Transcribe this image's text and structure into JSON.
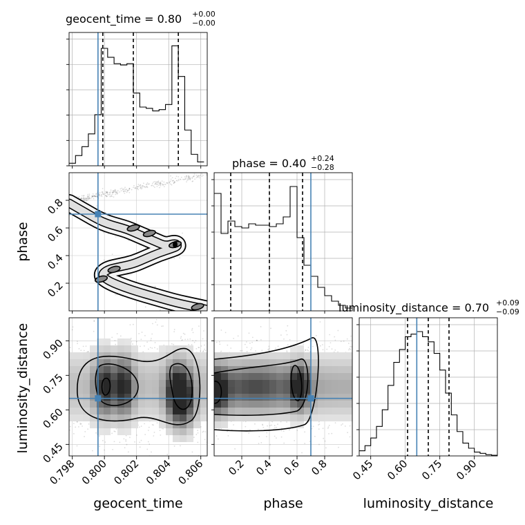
{
  "chart_data": {
    "type": "corner",
    "parameters": [
      "geocent_time",
      "phase",
      "luminosity_distance"
    ],
    "truth_color": "#4682b4",
    "grid": true,
    "titles": [
      {
        "param": "geocent_time",
        "base": "geocent_time = 0.80",
        "sup": "+0.00",
        "sub": "−0.00"
      },
      {
        "param": "phase",
        "base": "phase = 0.40",
        "sup": "+0.24",
        "sub": "−0.28"
      },
      {
        "param": "luminosity_distance",
        "base": "luminosity_distance = 0.70",
        "sup": "+0.09",
        "sub": "−0.09"
      }
    ],
    "axes": {
      "geocent_time": {
        "range": [
          0.7978,
          0.8064
        ],
        "ticks": [
          0.798,
          0.8,
          0.802,
          0.804,
          0.806
        ],
        "tick_labels": [
          "0.798",
          "0.800",
          "0.802",
          "0.804",
          "0.806"
        ],
        "truth": 0.7996
      },
      "phase": {
        "range": [
          0.0,
          1.0
        ],
        "ticks": [
          0.2,
          0.4,
          0.6,
          0.8
        ],
        "tick_labels": [
          "0.2",
          "0.4",
          "0.6",
          "0.8"
        ],
        "truth": 0.7
      },
      "luminosity_distance": {
        "range": [
          0.4,
          1.0
        ],
        "ticks": [
          0.45,
          0.6,
          0.75,
          0.9
        ],
        "tick_labels": [
          "0.45",
          "0.60",
          "0.75",
          "0.90"
        ],
        "truth": 0.65
      }
    },
    "histograms": {
      "geocent_time": {
        "bins": [
          0.7978,
          0.7982,
          0.7986,
          0.799,
          0.7994,
          0.7998,
          0.8002,
          0.8006,
          0.801,
          0.8014,
          0.8018,
          0.8022,
          0.8026,
          0.803,
          0.8034,
          0.8038,
          0.8042,
          0.8046,
          0.805,
          0.8054,
          0.8058,
          0.8062
        ],
        "counts": [
          0.02,
          0.08,
          0.15,
          0.25,
          0.4,
          0.92,
          0.85,
          0.8,
          0.79,
          0.8,
          0.57,
          0.46,
          0.45,
          0.43,
          0.44,
          0.48,
          0.94,
          0.7,
          0.28,
          0.09,
          0.03
        ],
        "quantiles": [
          0.7999,
          0.8018,
          0.8046
        ]
      },
      "phase": {
        "bins": [
          0.0,
          0.05,
          0.1,
          0.15,
          0.2,
          0.25,
          0.3,
          0.35,
          0.4,
          0.45,
          0.5,
          0.55,
          0.6,
          0.65,
          0.7,
          0.75,
          0.8,
          0.85,
          0.9,
          0.95,
          1.0
        ],
        "counts": [
          0.85,
          0.56,
          0.65,
          0.61,
          0.6,
          0.63,
          0.62,
          0.62,
          0.61,
          0.63,
          0.68,
          0.9,
          0.53,
          0.33,
          0.25,
          0.17,
          0.11,
          0.07,
          0.04,
          0.02
        ],
        "quantiles": [
          0.12,
          0.4,
          0.64
        ]
      },
      "luminosity_distance": {
        "bins": [
          0.4,
          0.425,
          0.45,
          0.475,
          0.5,
          0.525,
          0.55,
          0.575,
          0.6,
          0.625,
          0.65,
          0.675,
          0.7,
          0.725,
          0.75,
          0.775,
          0.8,
          0.825,
          0.85,
          0.875,
          0.9,
          0.925,
          0.95,
          0.975,
          1.0
        ],
        "counts": [
          0.04,
          0.08,
          0.14,
          0.23,
          0.36,
          0.55,
          0.73,
          0.83,
          0.93,
          0.95,
          0.97,
          0.93,
          0.89,
          0.8,
          0.67,
          0.49,
          0.32,
          0.19,
          0.1,
          0.06,
          0.03,
          0.02,
          0.01,
          0.005
        ],
        "quantiles": [
          0.61,
          0.7,
          0.79
        ]
      }
    },
    "scatter_2d": [
      {
        "x": "geocent_time",
        "y": "phase",
        "ridge": [
          [
            0.7978,
            0.78
          ],
          [
            0.7984,
            0.74
          ],
          [
            0.799,
            0.7
          ],
          [
            0.7996,
            0.66
          ],
          [
            0.8002,
            0.63
          ],
          [
            0.8008,
            0.61
          ],
          [
            0.8014,
            0.59
          ],
          [
            0.802,
            0.56
          ],
          [
            0.8026,
            0.53
          ],
          [
            0.8032,
            0.5
          ],
          [
            0.8038,
            0.47
          ],
          [
            0.8044,
            0.49
          ],
          [
            0.8046,
            0.47
          ],
          [
            0.8042,
            0.45
          ],
          [
            0.8034,
            0.42
          ],
          [
            0.8026,
            0.38
          ],
          [
            0.8018,
            0.34
          ],
          [
            0.801,
            0.32
          ],
          [
            0.8002,
            0.3
          ],
          [
            0.7998,
            0.26
          ],
          [
            0.8002,
            0.22
          ],
          [
            0.801,
            0.18
          ],
          [
            0.802,
            0.14
          ],
          [
            0.8032,
            0.1
          ],
          [
            0.8044,
            0.06
          ],
          [
            0.8056,
            0.03
          ],
          [
            0.8064,
            0.01
          ]
        ],
        "secondary_ridge": [
          [
            0.7978,
            0.8
          ],
          [
            0.799,
            0.82
          ],
          [
            0.8006,
            0.86
          ],
          [
            0.8024,
            0.9
          ],
          [
            0.8044,
            0.94
          ],
          [
            0.8064,
            0.99
          ]
        ]
      },
      {
        "x": "geocent_time",
        "y": "luminosity_distance",
        "density_peaks": [
          [
            0.8,
            0.7
          ],
          [
            0.8044,
            0.67
          ],
          [
            0.805,
            0.65
          ],
          [
            0.8012,
            0.7
          ]
        ]
      },
      {
        "x": "phase",
        "y": "luminosity_distance",
        "density_peaks": [
          [
            0.03,
            0.68
          ],
          [
            0.62,
            0.7
          ],
          [
            0.3,
            0.7
          ]
        ]
      }
    ]
  }
}
